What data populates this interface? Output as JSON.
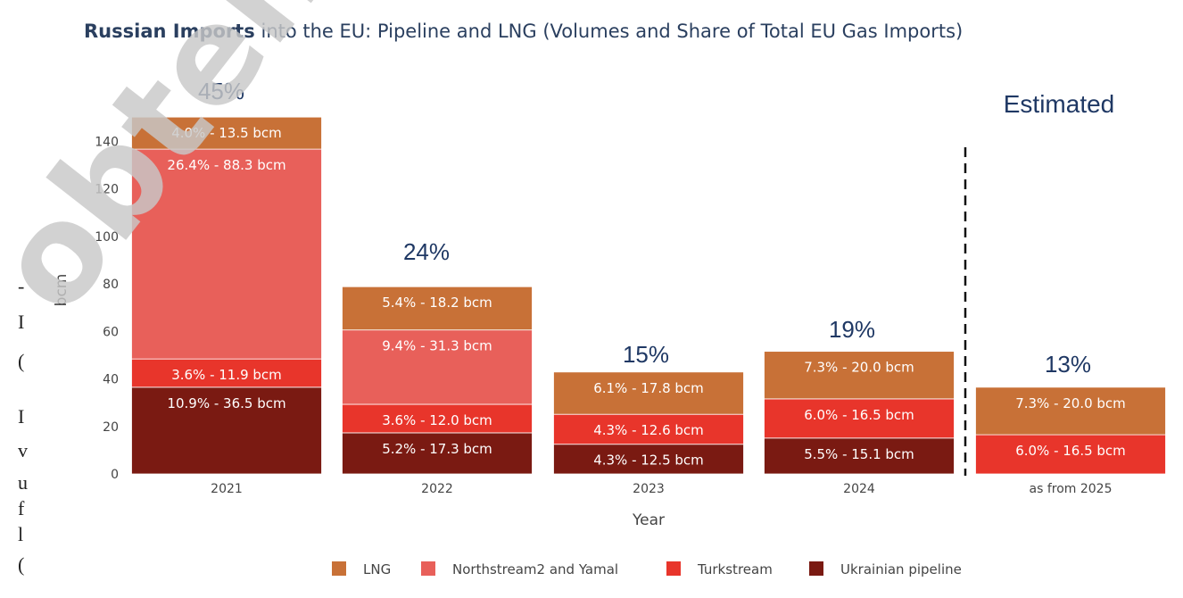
{
  "title_bold": "Russian Imports",
  "title_rest": " into the EU: Pipeline and LNG (Volumes and Share of Total EU Gas Imports)",
  "annotation_estimated": "Estimated",
  "watermark": "obten",
  "margin_fragments": [
    "-",
    "I",
    "(",
    "I",
    "v",
    "u",
    "f",
    "l",
    "("
  ],
  "colors": {
    "LNG": "#c87137",
    "Northstream2 and Yamal": "#e8605a",
    "Turkstream": "#e8352b",
    "Ukrainian pipeline": "#7a1a12",
    "annotation": "#1f3864"
  },
  "chart_data": {
    "type": "bar",
    "stacked": true,
    "categories": [
      "2021",
      "2022",
      "2023",
      "2024",
      "as from 2025"
    ],
    "xlabel": "Year",
    "ylabel": "bcm",
    "ylim": [
      0,
      150
    ],
    "yticks": [
      0,
      20,
      40,
      60,
      80,
      100,
      120,
      140
    ],
    "grid": false,
    "legend_position": "bottom",
    "series": [
      {
        "name": "Ukrainian pipeline",
        "values": [
          36.5,
          17.3,
          12.5,
          15.1,
          0
        ],
        "labels": [
          "10.9% - 36.5 bcm",
          "5.2% - 17.3 bcm",
          "4.3% - 12.5 bcm",
          "5.5% - 15.1 bcm",
          ""
        ]
      },
      {
        "name": "Turkstream",
        "values": [
          11.9,
          12.0,
          12.6,
          16.5,
          16.5
        ],
        "labels": [
          "3.6% - 11.9 bcm",
          "3.6% - 12.0 bcm",
          "4.3% - 12.6 bcm",
          "6.0% - 16.5 bcm",
          "6.0% - 16.5 bcm"
        ]
      },
      {
        "name": "Northstream2 and Yamal",
        "values": [
          88.3,
          31.3,
          0,
          0,
          0
        ],
        "labels": [
          "26.4% - 88.3 bcm",
          "9.4% - 31.3 bcm",
          "",
          "",
          ""
        ]
      },
      {
        "name": "LNG",
        "values": [
          13.5,
          18.2,
          17.8,
          20.0,
          20.0
        ],
        "labels": [
          "4.0% - 13.5 bcm",
          "5.4% - 18.2 bcm",
          "6.1% - 17.8 bcm",
          "7.3% - 20.0 bcm",
          "7.3% - 20.0 bcm"
        ]
      }
    ],
    "legend_order": [
      "LNG",
      "Northstream2 and Yamal",
      "Turkstream",
      "Ukrainian pipeline"
    ],
    "totals_share": [
      "45%",
      "24%",
      "15%",
      "19%",
      "13%"
    ],
    "estimated_from_category": "as from 2025"
  }
}
